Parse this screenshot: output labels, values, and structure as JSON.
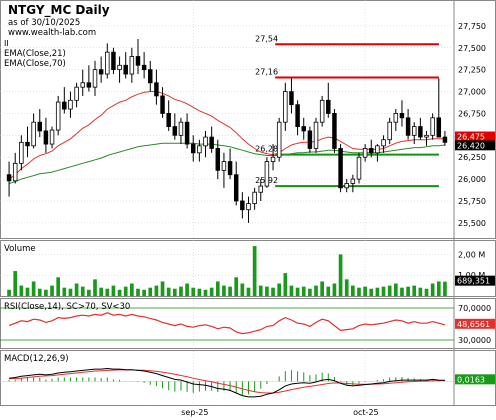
{
  "header": {
    "symbol_title": "NTGY_MC Daily",
    "asof": "as of 30/10/2025",
    "source": "www.wealth-lab.com",
    "marker": "II",
    "indicator_labels": [
      "EMA(Close,21)",
      "EMA(Close,70)"
    ]
  },
  "colors": {
    "up": "#000000",
    "down": "#000000",
    "ema21": "#e03030",
    "ema70": "#2a8a2a",
    "resistance": "#e00000",
    "support": "#119011",
    "volume": "#1a9a1a",
    "rsi": "#e03030",
    "macd": "#000000",
    "macd_signal": "#d33",
    "macd_hist": "#1a9a1a",
    "last_price_box": "#000000",
    "last_price_red_box": "#e00000",
    "grid": "#c8c8c8"
  },
  "chart_data": [
    {
      "type": "candlestick",
      "name": "price",
      "ylim": [
        25350,
        28000
      ],
      "yticks": [
        25500,
        25750,
        26000,
        26250,
        26500,
        26750,
        27000,
        27250,
        27500,
        27750
      ],
      "ytick_labels": [
        "25,500",
        "25,750",
        "26,000",
        "26,250",
        "26,500",
        "26,750",
        "27,000",
        "27,250",
        "27,500",
        "27,750"
      ],
      "last_close_label": "26,420",
      "last_red_label": "26,475",
      "bars": [
        [
          26050,
          26200,
          25800,
          25980
        ],
        [
          25980,
          26300,
          25950,
          26180
        ],
        [
          26180,
          26500,
          26100,
          26420
        ],
        [
          26420,
          26600,
          26250,
          26380
        ],
        [
          26380,
          26750,
          26350,
          26650
        ],
        [
          26650,
          26800,
          26480,
          26550
        ],
        [
          26550,
          26700,
          26300,
          26400
        ],
        [
          26400,
          26600,
          26350,
          26560
        ],
        [
          26560,
          26950,
          26500,
          26880
        ],
        [
          26880,
          27050,
          26750,
          26800
        ],
        [
          26800,
          27000,
          26700,
          26900
        ],
        [
          26900,
          27100,
          26820,
          27050
        ],
        [
          27050,
          27250,
          26950,
          27100
        ],
        [
          27100,
          27300,
          27000,
          27050
        ],
        [
          27050,
          27350,
          26950,
          27250
        ],
        [
          27250,
          27400,
          27100,
          27200
        ],
        [
          27200,
          27550,
          27150,
          27450
        ],
        [
          27450,
          27500,
          27200,
          27250
        ],
        [
          27250,
          27400,
          27100,
          27300
        ],
        [
          27300,
          27450,
          27150,
          27200
        ],
        [
          27200,
          27500,
          27100,
          27400
        ],
        [
          27400,
          27600,
          27200,
          27300
        ],
        [
          27300,
          27450,
          27150,
          27250
        ],
        [
          27250,
          27350,
          27000,
          27100
        ],
        [
          27100,
          27250,
          26850,
          26950
        ],
        [
          26950,
          27050,
          26700,
          26750
        ],
        [
          26750,
          26900,
          26550,
          26600
        ],
        [
          26600,
          26750,
          26450,
          26500
        ],
        [
          26500,
          26700,
          26400,
          26650
        ],
        [
          26650,
          26750,
          26350,
          26400
        ],
        [
          26400,
          26500,
          26200,
          26300
        ],
        [
          26300,
          26450,
          26200,
          26380
        ],
        [
          26380,
          26550,
          26250,
          26480
        ],
        [
          26480,
          26600,
          26300,
          26350
        ],
        [
          26350,
          26450,
          26000,
          26100
        ],
        [
          26100,
          26300,
          25900,
          26200
        ],
        [
          26200,
          26350,
          26000,
          26050
        ],
        [
          26050,
          26200,
          25700,
          25750
        ],
        [
          25750,
          25850,
          25550,
          25650
        ],
        [
          25650,
          25800,
          25500,
          25720
        ],
        [
          25720,
          25900,
          25650,
          25850
        ],
        [
          25850,
          26000,
          25750,
          25920
        ],
        [
          25920,
          26250,
          25900,
          26200
        ],
        [
          26200,
          26400,
          26100,
          26250
        ],
        [
          26250,
          26700,
          26200,
          26650
        ],
        [
          26650,
          27100,
          26550,
          27000
        ],
        [
          27000,
          27150,
          26750,
          26850
        ],
        [
          26850,
          26900,
          26500,
          26600
        ],
        [
          26600,
          26700,
          26450,
          26550
        ],
        [
          26550,
          26600,
          26300,
          26350
        ],
        [
          26350,
          26700,
          26300,
          26650
        ],
        [
          26650,
          26950,
          26600,
          26900
        ],
        [
          26900,
          27100,
          26700,
          26750
        ],
        [
          26750,
          26800,
          26300,
          26350
        ],
        [
          26350,
          26400,
          25850,
          25900
        ],
        [
          25900,
          26000,
          25850,
          25950
        ],
        [
          25950,
          26050,
          25850,
          26000
        ],
        [
          26000,
          26300,
          25950,
          26250
        ],
        [
          26250,
          26400,
          26200,
          26350
        ],
        [
          26350,
          26450,
          26250,
          26300
        ],
        [
          26300,
          26400,
          26200,
          26380
        ],
        [
          26380,
          26500,
          26300,
          26450
        ],
        [
          26450,
          26700,
          26400,
          26650
        ],
        [
          26650,
          26800,
          26550,
          26750
        ],
        [
          26750,
          26900,
          26600,
          26700
        ],
        [
          26700,
          26800,
          26450,
          26500
        ],
        [
          26500,
          26650,
          26400,
          26600
        ],
        [
          26600,
          26700,
          26450,
          26480
        ],
        [
          26480,
          26550,
          26380,
          26500
        ],
        [
          26500,
          26750,
          26450,
          26700
        ],
        [
          26700,
          27150,
          26550,
          26480
        ],
        [
          26480,
          26550,
          26380,
          26420
        ]
      ],
      "ema21": [
        26000,
        26050,
        26120,
        26170,
        26230,
        26270,
        26290,
        26320,
        26380,
        26420,
        26460,
        26520,
        26580,
        26620,
        26680,
        26730,
        26800,
        26840,
        26880,
        26900,
        26940,
        26970,
        26990,
        27000,
        27000,
        26980,
        26950,
        26910,
        26890,
        26860,
        26820,
        26780,
        26750,
        26720,
        26670,
        26630,
        26590,
        26530,
        26460,
        26400,
        26350,
        26310,
        26290,
        26280,
        26300,
        26350,
        26390,
        26410,
        26420,
        26420,
        26430,
        26460,
        26480,
        26470,
        26430,
        26390,
        26350,
        26340,
        26340,
        26340,
        26340,
        26350,
        26380,
        26410,
        26430,
        26440,
        26450,
        26450,
        26450,
        26460,
        26460,
        26460
      ],
      "ema70": [
        25950,
        25970,
        26000,
        26020,
        26040,
        26060,
        26070,
        26080,
        26100,
        26120,
        26140,
        26160,
        26180,
        26200,
        26220,
        26240,
        26270,
        26290,
        26310,
        26330,
        26350,
        26370,
        26380,
        26390,
        26400,
        26410,
        26410,
        26410,
        26410,
        26410,
        26410,
        26400,
        26400,
        26400,
        26390,
        26380,
        26370,
        26350,
        26330,
        26310,
        26290,
        26280,
        26270,
        26270,
        26270,
        26280,
        26290,
        26300,
        26300,
        26310,
        26310,
        26320,
        26330,
        26330,
        26320,
        26310,
        26300,
        26300,
        26300,
        26300,
        26300,
        26310,
        26320,
        26330,
        26340,
        26350,
        26360,
        26360,
        26370,
        26380,
        26380,
        26390
      ],
      "levels": [
        {
          "value": 27540,
          "label": "27,54",
          "kind": "resistance",
          "from_index": 44,
          "to_index": 71
        },
        {
          "value": 27160,
          "label": "27,16",
          "kind": "resistance",
          "from_index": 44,
          "to_index": 71
        },
        {
          "value": 26280,
          "label": "26,28",
          "kind": "support",
          "from_index": 44,
          "to_index": 71
        },
        {
          "value": 25920,
          "label": "25,92",
          "kind": "support",
          "from_index": 44,
          "to_index": 71
        }
      ]
    },
    {
      "type": "bar",
      "name": "volume",
      "title": "Volume",
      "ylim": [
        0,
        2500000
      ],
      "ytick_labels": [
        "2,00 M",
        "1,00 M"
      ],
      "yticks": [
        2000000,
        1000000
      ],
      "last_label": "689,351",
      "values": [
        300000,
        1200000,
        500000,
        400000,
        700000,
        350000,
        300000,
        500000,
        900000,
        400000,
        350000,
        600000,
        450000,
        300000,
        800000,
        400000,
        350000,
        500000,
        300000,
        450000,
        600000,
        350000,
        300000,
        400000,
        500000,
        700000,
        400000,
        350000,
        450000,
        600000,
        400000,
        350000,
        300000,
        400000,
        700000,
        500000,
        450000,
        900000,
        600000,
        400000,
        2400000,
        500000,
        450000,
        400000,
        600000,
        1100000,
        500000,
        400000,
        450000,
        350000,
        500000,
        700000,
        450000,
        600000,
        2000000,
        800000,
        500000,
        400000,
        450000,
        350000,
        400000,
        450000,
        500000,
        600000,
        400000,
        450000,
        500000,
        400000,
        350000,
        600000,
        700000,
        689351
      ]
    },
    {
      "type": "line",
      "name": "rsi",
      "title": "RSI(Close,14), SC>70, SV<30",
      "ylim": [
        20,
        80
      ],
      "yticks": [
        70,
        30
      ],
      "ytick_labels": [
        "70,0000",
        "30,0000"
      ],
      "last_label": "48,6561",
      "values": [
        48,
        51,
        54,
        53,
        56,
        55,
        52,
        54,
        58,
        57,
        58,
        60,
        61,
        60,
        62,
        61,
        64,
        61,
        62,
        60,
        62,
        60,
        59,
        57,
        55,
        52,
        50,
        48,
        50,
        47,
        46,
        48,
        49,
        47,
        44,
        46,
        45,
        40,
        38,
        39,
        41,
        43,
        47,
        48,
        54,
        58,
        55,
        51,
        50,
        47,
        52,
        56,
        54,
        48,
        42,
        43,
        44,
        48,
        50,
        49,
        50,
        51,
        53,
        55,
        54,
        51,
        53,
        51,
        51,
        53,
        51,
        49
      ]
    },
    {
      "type": "line",
      "name": "macd",
      "title": "MACD(12,26,9)",
      "last_label": "0,0163",
      "ylim": [
        -0.35,
        0.3
      ],
      "macd": [
        0.05,
        0.06,
        0.08,
        0.09,
        0.1,
        0.11,
        0.1,
        0.11,
        0.13,
        0.14,
        0.15,
        0.16,
        0.17,
        0.18,
        0.19,
        0.19,
        0.2,
        0.19,
        0.19,
        0.18,
        0.18,
        0.17,
        0.16,
        0.14,
        0.12,
        0.09,
        0.06,
        0.03,
        0.02,
        -0.01,
        -0.04,
        -0.05,
        -0.06,
        -0.08,
        -0.11,
        -0.12,
        -0.14,
        -0.18,
        -0.22,
        -0.24,
        -0.24,
        -0.23,
        -0.2,
        -0.18,
        -0.13,
        -0.07,
        -0.04,
        -0.03,
        -0.02,
        -0.03,
        -0.01,
        0.02,
        0.03,
        0.01,
        -0.03,
        -0.06,
        -0.07,
        -0.06,
        -0.05,
        -0.04,
        -0.03,
        -0.02,
        0.0,
        0.01,
        0.02,
        0.02,
        0.02,
        0.02,
        0.02,
        0.03,
        0.02,
        0.0163
      ],
      "signal": [
        0.04,
        0.045,
        0.05,
        0.06,
        0.07,
        0.08,
        0.085,
        0.09,
        0.1,
        0.11,
        0.12,
        0.13,
        0.14,
        0.15,
        0.16,
        0.165,
        0.17,
        0.175,
        0.178,
        0.178,
        0.177,
        0.175,
        0.172,
        0.166,
        0.157,
        0.144,
        0.128,
        0.109,
        0.091,
        0.071,
        0.049,
        0.029,
        0.011,
        -0.007,
        -0.028,
        -0.046,
        -0.065,
        -0.088,
        -0.114,
        -0.14,
        -0.16,
        -0.174,
        -0.179,
        -0.179,
        -0.169,
        -0.149,
        -0.127,
        -0.108,
        -0.09,
        -0.078,
        -0.064,
        -0.048,
        -0.032,
        -0.024,
        -0.025,
        -0.032,
        -0.039,
        -0.043,
        -0.044,
        -0.043,
        -0.041,
        -0.037,
        -0.03,
        -0.022,
        -0.014,
        -0.007,
        -0.002,
        0.002,
        0.005,
        0.01,
        0.012,
        0.013
      ]
    }
  ],
  "xaxis": {
    "labels": [
      {
        "text": "sep-25",
        "index": 30
      },
      {
        "text": "oct-25",
        "index": 58
      }
    ]
  }
}
